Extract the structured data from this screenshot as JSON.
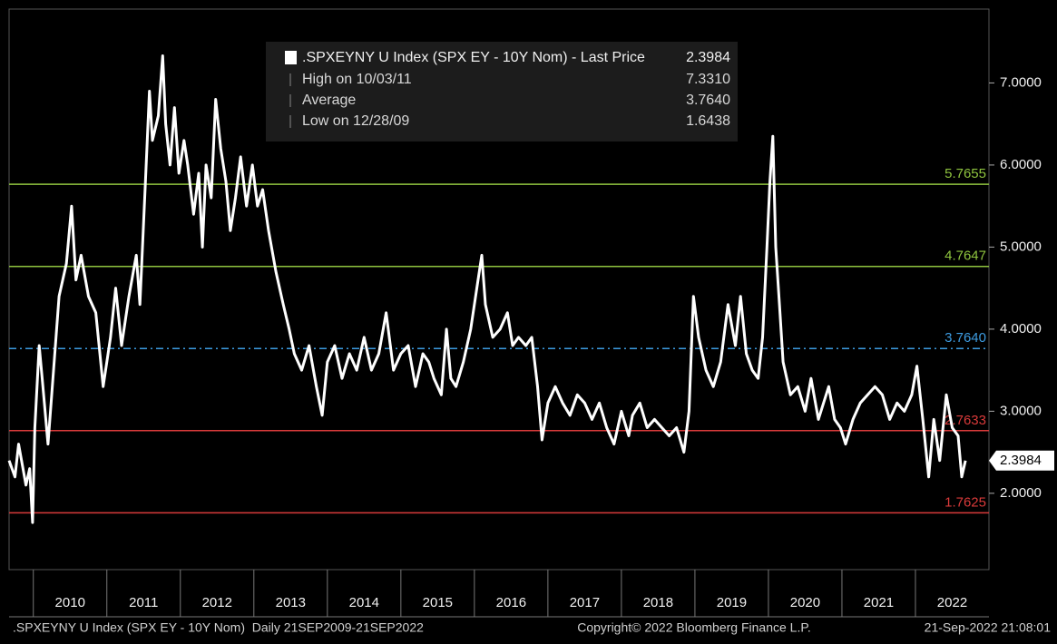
{
  "chart_data": {
    "type": "line",
    "series": [
      {
        "name": ".SPXEYNY U Index (SPX EY - 10Y Nom) - Last Price",
        "color": "#ffffff",
        "x": [
          2009.67,
          2009.75,
          2009.8,
          2009.9,
          2009.95,
          2009.99,
          2010.02,
          2010.08,
          2010.12,
          2010.2,
          2010.25,
          2010.35,
          2010.45,
          2010.52,
          2010.58,
          2010.65,
          2010.75,
          2010.85,
          2010.95,
          2011.05,
          2011.12,
          2011.2,
          2011.3,
          2011.4,
          2011.45,
          2011.52,
          2011.58,
          2011.62,
          2011.7,
          2011.76,
          2011.8,
          2011.86,
          2011.92,
          2011.98,
          2012.05,
          2012.1,
          2012.18,
          2012.25,
          2012.3,
          2012.35,
          2012.42,
          2012.48,
          2012.55,
          2012.62,
          2012.68,
          2012.75,
          2012.82,
          2012.9,
          2012.98,
          2013.05,
          2013.12,
          2013.2,
          2013.3,
          2013.4,
          2013.48,
          2013.55,
          2013.65,
          2013.75,
          2013.85,
          2013.93,
          2014.0,
          2014.1,
          2014.2,
          2014.3,
          2014.4,
          2014.5,
          2014.6,
          2014.7,
          2014.8,
          2014.9,
          2015.0,
          2015.1,
          2015.2,
          2015.3,
          2015.38,
          2015.45,
          2015.55,
          2015.62,
          2015.68,
          2015.75,
          2015.85,
          2015.95,
          2016.05,
          2016.1,
          2016.15,
          2016.25,
          2016.35,
          2016.45,
          2016.52,
          2016.6,
          2016.7,
          2016.78,
          2016.86,
          2016.92,
          2017.0,
          2017.1,
          2017.2,
          2017.3,
          2017.4,
          2017.5,
          2017.6,
          2017.7,
          2017.8,
          2017.9,
          2018.0,
          2018.1,
          2018.15,
          2018.25,
          2018.35,
          2018.45,
          2018.55,
          2018.65,
          2018.75,
          2018.85,
          2018.92,
          2018.98,
          2019.05,
          2019.15,
          2019.25,
          2019.35,
          2019.45,
          2019.55,
          2019.62,
          2019.7,
          2019.78,
          2019.86,
          2019.92,
          2019.98,
          2020.02,
          2020.06,
          2020.1,
          2020.15,
          2020.2,
          2020.3,
          2020.4,
          2020.5,
          2020.58,
          2020.68,
          2020.75,
          2020.82,
          2020.9,
          2020.98,
          2021.05,
          2021.15,
          2021.25,
          2021.35,
          2021.45,
          2021.55,
          2021.65,
          2021.75,
          2021.85,
          2021.95,
          2022.02,
          2022.1,
          2022.18,
          2022.25,
          2022.33,
          2022.42,
          2022.5,
          2022.58,
          2022.63,
          2022.68
        ],
        "values": [
          2.4,
          2.2,
          2.6,
          2.1,
          2.3,
          1.6438,
          2.8,
          3.8,
          3.4,
          2.6,
          3.2,
          4.4,
          4.8,
          5.5,
          4.6,
          4.9,
          4.4,
          4.2,
          3.3,
          3.9,
          4.5,
          3.8,
          4.4,
          4.9,
          4.3,
          5.7,
          6.9,
          6.3,
          6.6,
          7.331,
          6.5,
          6.0,
          6.7,
          5.9,
          6.3,
          6.0,
          5.4,
          5.9,
          5.0,
          6.0,
          5.6,
          6.8,
          6.2,
          5.8,
          5.2,
          5.6,
          6.1,
          5.5,
          6.0,
          5.5,
          5.7,
          5.2,
          4.7,
          4.3,
          4.0,
          3.7,
          3.5,
          3.8,
          3.3,
          2.95,
          3.6,
          3.8,
          3.4,
          3.7,
          3.5,
          3.9,
          3.5,
          3.7,
          4.2,
          3.5,
          3.7,
          3.8,
          3.3,
          3.7,
          3.6,
          3.4,
          3.2,
          4.0,
          3.4,
          3.3,
          3.6,
          4.0,
          4.6,
          4.9,
          4.3,
          3.9,
          4.0,
          4.2,
          3.8,
          3.9,
          3.8,
          3.9,
          3.3,
          2.65,
          3.1,
          3.3,
          3.1,
          2.95,
          3.2,
          3.1,
          2.9,
          3.1,
          2.8,
          2.6,
          3.0,
          2.7,
          2.95,
          3.1,
          2.8,
          2.9,
          2.8,
          2.7,
          2.8,
          2.5,
          3.0,
          4.4,
          3.9,
          3.5,
          3.3,
          3.6,
          4.3,
          3.8,
          4.4,
          3.7,
          3.5,
          3.4,
          3.9,
          5.0,
          5.8,
          6.35,
          5.0,
          4.3,
          3.6,
          3.2,
          3.3,
          3.0,
          3.4,
          2.9,
          3.1,
          3.3,
          2.9,
          2.8,
          2.6,
          2.9,
          3.1,
          3.2,
          3.3,
          3.2,
          2.9,
          3.1,
          3.0,
          3.2,
          3.55,
          2.9,
          2.2,
          2.9,
          2.4,
          3.2,
          2.8,
          2.7,
          2.2,
          2.3984
        ]
      }
    ],
    "legend_box": {
      "rows": [
        {
          "label": "High on 10/03/11",
          "value": "7.3310"
        },
        {
          "label": "Average",
          "value": "3.7640"
        },
        {
          "label": "Low on 12/28/09",
          "value": "1.6438"
        }
      ]
    },
    "reference_lines": [
      {
        "value": 5.7655,
        "label": "5.7655",
        "color": "#8fc43f",
        "dashed": false
      },
      {
        "value": 4.7647,
        "label": "4.7647",
        "color": "#8fc43f",
        "dashed": false
      },
      {
        "value": 3.764,
        "label": "3.7640",
        "color": "#3d9be0",
        "dashed": true
      },
      {
        "value": 2.7633,
        "label": "2.7633",
        "color": "#d93a3a",
        "dashed": false
      },
      {
        "value": 1.7625,
        "label": "1.7625",
        "color": "#d93a3a",
        "dashed": false
      }
    ],
    "xlim": [
      2009.67,
      2023.0
    ],
    "xticks": [
      2010,
      2011,
      2012,
      2013,
      2014,
      2015,
      2016,
      2017,
      2018,
      2019,
      2020,
      2021,
      2022
    ],
    "ylim": [
      1.07,
      7.9
    ],
    "yticks": [
      {
        "value": 2,
        "label": "2.0000"
      },
      {
        "value": 3,
        "label": "3.0000"
      },
      {
        "value": 4,
        "label": "4.0000"
      },
      {
        "value": 5,
        "label": "5.0000"
      },
      {
        "value": 6,
        "label": "6.0000"
      },
      {
        "value": 7,
        "label": "7.0000"
      }
    ],
    "footer": [
      ".SPXEYNY U Index (SPX EY - 10Y Nom)  Daily 21SEP2009-21SEP2022",
      "Copyright© 2022 Bloomberg Finance L.P.",
      "21-Sep-2022 21:08:01"
    ]
  }
}
